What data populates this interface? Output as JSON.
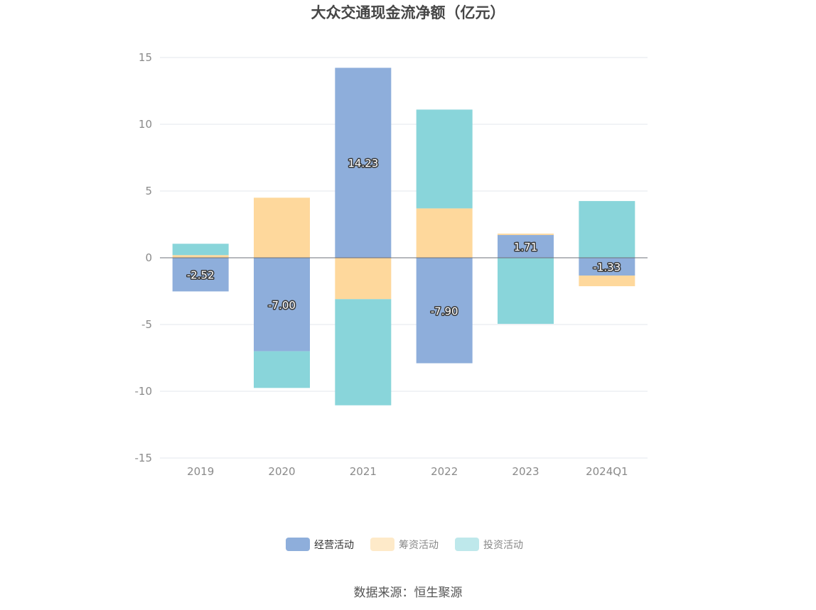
{
  "chart_data": {
    "type": "bar",
    "stacked": true,
    "title": "大众交通现金流净额（亿元）",
    "categories": [
      "2019",
      "2020",
      "2021",
      "2022",
      "2023",
      "2024Q1"
    ],
    "series": [
      {
        "name": "经营活动",
        "color": "#8eaedb",
        "values": [
          -2.52,
          -7.0,
          14.23,
          -7.9,
          1.71,
          -1.33
        ],
        "labels": [
          "-2.52",
          "-7.00",
          "14.23",
          "-7.90",
          "1.71",
          "-1.33"
        ]
      },
      {
        "name": "筹资活动",
        "color": "#fed89c",
        "values": [
          0.2,
          4.5,
          -3.1,
          3.7,
          0.1,
          -0.8
        ]
      },
      {
        "name": "投资活动",
        "color": "#89d5da",
        "values": [
          0.85,
          -2.75,
          -7.95,
          7.4,
          -4.95,
          4.25
        ]
      }
    ],
    "yticks": [
      15,
      10,
      5,
      0,
      -5,
      -10,
      -15
    ],
    "ylim": [
      -15,
      15
    ],
    "grid": true,
    "legend_position": "bottom",
    "source": "数据来源：恒生聚源"
  }
}
